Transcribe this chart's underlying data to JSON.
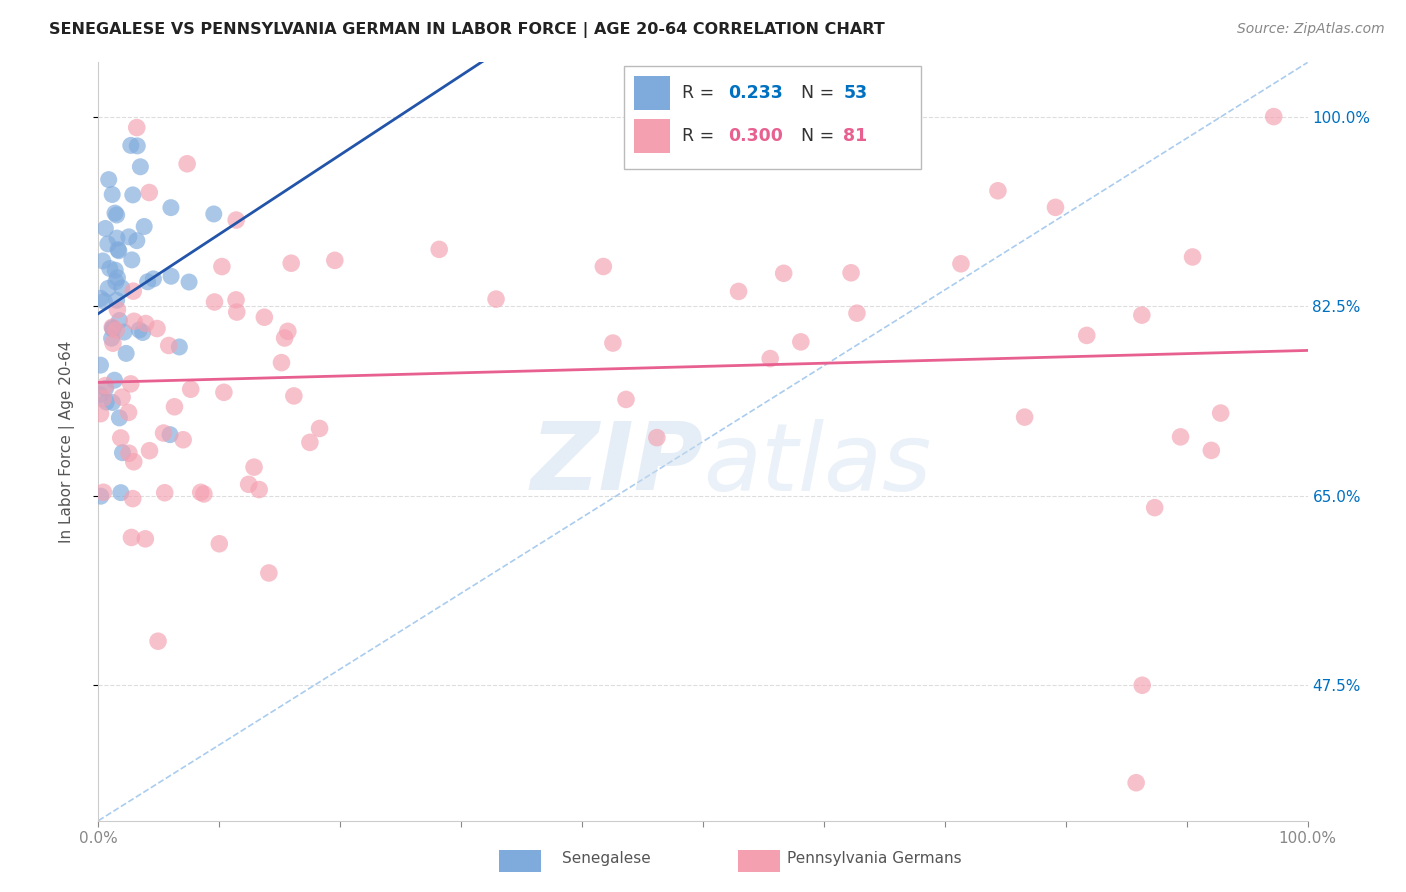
{
  "title": "SENEGALESE VS PENNSYLVANIA GERMAN IN LABOR FORCE | AGE 20-64 CORRELATION CHART",
  "source": "Source: ZipAtlas.com",
  "ylabel": "In Labor Force | Age 20-64",
  "xlim": [
    0.0,
    1.0
  ],
  "ylim": [
    0.35,
    1.05
  ],
  "senegalese_color": "#7FAADC",
  "penn_german_color": "#F4A0B0",
  "senegalese_line_color": "#2255AA",
  "penn_german_line_color": "#E86090",
  "diagonal_color": "#AACCEE",
  "background_color": "#FFFFFF",
  "grid_color": "#DDDDDD",
  "sen_R": "0.233",
  "sen_N": "53",
  "penn_R": "0.300",
  "penn_N": "81",
  "blue_text_color": "#0070C0",
  "pink_text_color": "#E86090",
  "right_axis_color": "#0070C0"
}
